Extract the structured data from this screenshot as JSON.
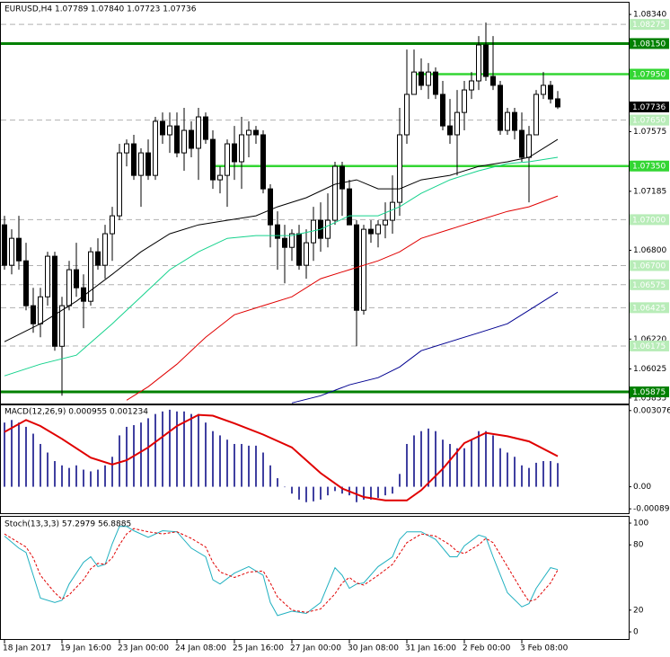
{
  "chart_data": [
    {
      "type": "candlestick",
      "title": "EURUSD,H4 1.07789 1.07840 1.07723 1.07736",
      "categories": [
        "18 Jan 2017",
        null,
        null,
        null,
        null,
        null,
        null,
        null,
        "19 Jan 16:00",
        null,
        null,
        null,
        null,
        null,
        null,
        null,
        "23 Jan 00:00",
        null,
        null,
        null,
        null,
        null,
        null,
        null,
        "24 Jan 08:00",
        null,
        null,
        null,
        null,
        null,
        null,
        null,
        "25 Jan 16:00",
        null,
        null,
        null,
        null,
        null,
        null,
        null,
        "27 Jan 00:00",
        null,
        null,
        null,
        null,
        null,
        null,
        null,
        "30 Jan 08:00",
        null,
        null,
        null,
        null,
        null,
        null,
        null,
        "31 Jan 16:00",
        null,
        null,
        null,
        null,
        null,
        null,
        null,
        "2 Feb 00:00",
        null,
        null,
        null,
        null,
        null,
        null,
        null,
        "3 Feb 08:00",
        null,
        null,
        null,
        null,
        null
      ],
      "open": [
        1.06966,
        1.06702,
        1.06878,
        1.06731,
        1.06438,
        1.0632,
        1.06496,
        1.06761,
        1.06173,
        1.06438,
        1.06673,
        1.06555,
        1.06467,
        1.0679,
        1.06702,
        1.06908,
        1.07025,
        1.07436,
        1.07495,
        1.07289,
        1.07436,
        1.07289,
        1.07642,
        1.07554,
        1.07612,
        1.07436,
        1.07583,
        1.07466,
        1.07671,
        1.07524,
        1.0726,
        1.07289,
        1.07495,
        1.07378,
        1.07554,
        1.07583,
        1.07554,
        1.07201,
        1.06966,
        1.06878,
        1.06819,
        1.06908,
        1.06702,
        1.06849,
        1.06996,
        1.06878,
        1.06996,
        1.07348,
        1.07201,
        1.06966,
        1.06408,
        1.06937,
        1.06908,
        1.06966,
        1.06996,
        1.07113,
        1.07554,
        1.07818,
        1.07964,
        1.07877,
        1.07964,
        1.07818,
        1.07612,
        1.07554,
        1.077,
        1.07847,
        1.07906,
        1.08141,
        1.07935,
        1.07877,
        1.07583,
        1.077,
        1.07583,
        1.07407,
        1.07554,
        1.07818,
        1.07877,
        1.07789
      ],
      "high": [
        1.07025,
        1.06937,
        1.07025,
        1.06849,
        1.06555,
        1.06555,
        1.0679,
        1.0679,
        1.06496,
        1.06731,
        1.06849,
        1.06643,
        1.06819,
        1.06878,
        1.06966,
        1.07084,
        1.07495,
        1.07524,
        1.07554,
        1.07466,
        1.07524,
        1.07671,
        1.077,
        1.077,
        1.077,
        1.0773,
        1.07642,
        1.0773,
        1.077,
        1.07583,
        1.07348,
        1.07524,
        1.07612,
        1.07671,
        1.07642,
        1.07612,
        1.07583,
        1.07231,
        1.07054,
        1.06966,
        1.06937,
        1.06966,
        1.06937,
        1.07084,
        1.07113,
        1.07172,
        1.07378,
        1.07378,
        1.0726,
        1.06996,
        1.06966,
        1.06996,
        1.06996,
        1.07113,
        1.07289,
        1.0773,
        1.08111,
        1.08111,
        1.08053,
        1.08023,
        1.07994,
        1.07906,
        1.07788,
        1.07847,
        1.07906,
        1.07964,
        1.08199,
        1.08287,
        1.08199,
        1.07906,
        1.0773,
        1.0773,
        1.077,
        1.07612,
        1.07847,
        1.07964,
        1.07906,
        1.0784
      ],
      "low": [
        1.06673,
        1.06643,
        1.06673,
        1.06408,
        1.06261,
        1.06232,
        1.06438,
        1.06144,
        1.0585,
        1.06408,
        1.06496,
        1.06291,
        1.06438,
        1.06673,
        1.06614,
        1.06731,
        1.06996,
        1.07348,
        1.0726,
        1.07084,
        1.0726,
        1.0726,
        1.07495,
        1.07436,
        1.07407,
        1.07319,
        1.07407,
        1.0726,
        1.07495,
        1.07201,
        1.07172,
        1.07084,
        1.0726,
        1.07201,
        1.07407,
        1.07495,
        1.07172,
        1.06819,
        1.06673,
        1.06584,
        1.06731,
        1.06673,
        1.06614,
        1.06731,
        1.0679,
        1.06819,
        1.06966,
        1.07025,
        1.06966,
        1.06173,
        1.06379,
        1.06849,
        1.06819,
        1.06878,
        1.06908,
        1.07025,
        1.07495,
        1.07818,
        1.07847,
        1.07788,
        1.07788,
        1.07583,
        1.07495,
        1.07289,
        1.07583,
        1.07788,
        1.07847,
        1.07906,
        1.07847,
        1.07554,
        1.07554,
        1.07524,
        1.07378,
        1.07113,
        1.07554,
        1.07788,
        1.07759,
        1.07723
      ],
      "close": [
        1.06702,
        1.06878,
        1.06731,
        1.06438,
        1.0632,
        1.06496,
        1.06761,
        1.06173,
        1.06438,
        1.06673,
        1.06555,
        1.06467,
        1.0679,
        1.06702,
        1.06908,
        1.07025,
        1.07436,
        1.07495,
        1.07289,
        1.07436,
        1.07289,
        1.07642,
        1.07554,
        1.07612,
        1.07436,
        1.07583,
        1.07466,
        1.07671,
        1.07524,
        1.0726,
        1.07289,
        1.07495,
        1.07378,
        1.07554,
        1.07583,
        1.07554,
        1.07201,
        1.06966,
        1.06878,
        1.06819,
        1.06908,
        1.06702,
        1.06849,
        1.06996,
        1.06878,
        1.06996,
        1.07348,
        1.07201,
        1.06966,
        1.06408,
        1.06937,
        1.06908,
        1.06966,
        1.06996,
        1.07113,
        1.07554,
        1.07818,
        1.07964,
        1.07877,
        1.07964,
        1.07818,
        1.07612,
        1.07554,
        1.077,
        1.07847,
        1.07906,
        1.08141,
        1.07935,
        1.07877,
        1.07583,
        1.077,
        1.07583,
        1.07407,
        1.07554,
        1.07818,
        1.07877,
        1.07788,
        1.07736
      ],
      "up_color": "#ffffff",
      "down_color": "#000000",
      "lines": [
        {
          "color": "#000000",
          "x": [
            0,
            5,
            10,
            15,
            19,
            23,
            27,
            31,
            35,
            38,
            42,
            46,
            49,
            52,
            55,
            58,
            62,
            66,
            70,
            73,
            77
          ],
          "values": [
            1.06203,
            1.0632,
            1.06467,
            1.06643,
            1.0679,
            1.06908,
            1.06966,
            1.06996,
            1.07025,
            1.07084,
            1.07143,
            1.07231,
            1.0726,
            1.07201,
            1.07201,
            1.0726,
            1.07289,
            1.07348,
            1.07378,
            1.07407,
            1.07524
          ]
        },
        {
          "color": "#14d28c",
          "x": [
            0,
            5,
            10,
            15,
            19,
            23,
            27,
            31,
            35,
            40,
            44,
            48,
            52,
            55,
            58,
            62,
            66,
            70,
            73,
            77
          ],
          "values": [
            1.0598,
            1.06056,
            1.06115,
            1.0632,
            1.06496,
            1.06673,
            1.0679,
            1.06878,
            1.06896,
            1.06896,
            1.06937,
            1.07025,
            1.07025,
            1.07084,
            1.07172,
            1.0726,
            1.07319,
            1.07366,
            1.07378,
            1.07407
          ]
        },
        {
          "color": "#e00000",
          "x": [
            17,
            20,
            24,
            28,
            32,
            36,
            40,
            44,
            48,
            52,
            55,
            58,
            62,
            66,
            70,
            73,
            77
          ],
          "values": [
            1.05821,
            1.05909,
            1.06056,
            1.06232,
            1.06379,
            1.06438,
            1.06496,
            1.06614,
            1.06673,
            1.06731,
            1.0679,
            1.06878,
            1.06937,
            1.06996,
            1.07054,
            1.07084,
            1.07154
          ]
        },
        {
          "color": "#000090",
          "x": [
            40,
            44,
            48,
            52,
            55,
            58,
            62,
            66,
            70,
            73,
            77
          ],
          "values": [
            1.05803,
            1.0585,
            1.05921,
            1.05968,
            1.06038,
            1.06144,
            1.06203,
            1.06261,
            1.0632,
            1.06408,
            1.06526
          ]
        }
      ],
      "levels": [
        {
          "value": 1.08275,
          "label": "1.08275",
          "style": "dashed",
          "color": "#b0b0b0",
          "label_color": "#b8ecb8"
        },
        {
          "value": 1.0815,
          "label": "1.08150",
          "style": "solid",
          "color": "#008000",
          "label_color": "#008000"
        },
        {
          "value": 1.0795,
          "label": "1.07950",
          "style": "solid",
          "color": "#33d633",
          "label_color": "#33d633",
          "x_start": 57
        },
        {
          "value": 1.0765,
          "label": "1.07650",
          "style": "dashed",
          "color": "#b0b0b0",
          "label_color": "#b8ecb8"
        },
        {
          "value": 1.0735,
          "label": "1.07350",
          "style": "solid",
          "color": "#33d633",
          "label_color": "#33d633",
          "x_start": 29
        },
        {
          "value": 1.07,
          "label": "1.07000",
          "style": "dashed",
          "color": "#b0b0b0",
          "label_color": "#b8ecb8"
        },
        {
          "value": 1.067,
          "label": "1.06700",
          "style": "dashed",
          "color": "#b0b0b0",
          "label_color": "#b8ecb8"
        },
        {
          "value": 1.06575,
          "label": "1.06575",
          "style": "dashed",
          "color": "#b0b0b0",
          "label_color": "#b8ecb8"
        },
        {
          "value": 1.06425,
          "label": "1.06425",
          "style": "dashed",
          "color": "#b0b0b0",
          "label_color": "#b8ecb8"
        },
        {
          "value": 1.06175,
          "label": "1.06175",
          "style": "dashed",
          "color": "#b0b0b0",
          "label_color": "#b8ecb8"
        },
        {
          "value": 1.05875,
          "label": "1.05875",
          "style": "solid",
          "color": "#008000",
          "label_color": "#008000"
        }
      ],
      "last_price": {
        "value": 1.07736,
        "label": "1.07736"
      },
      "ylim": [
        1.05799,
        1.08405
      ],
      "yticks": [
        {
          "value": 1.0834,
          "label": "1.08340"
        },
        1.07575,
        1.07185,
        {
          "value": 1.068,
          "label": "1.06800"
        },
        {
          "value": 1.0622,
          "label": "1.06220"
        },
        1.06025,
        1.05835
      ]
    },
    {
      "type": "macd",
      "title": "MACD(12,26,9) 0.000955 0.001234",
      "color": "#000080",
      "values": [
        0.002592,
        0.002696,
        0.002592,
        0.002419,
        0.002143,
        0.001728,
        0.001382,
        0.001037,
        0.000864,
        0.00076,
        0.000864,
        0.000691,
        0.000622,
        0.000691,
        0.000864,
        0.00121,
        0.002074,
        0.002419,
        0.002488,
        0.002592,
        0.002765,
        0.002938,
        0.003041,
        0.00311,
        0.003041,
        0.003041,
        0.002938,
        0.002938,
        0.002592,
        0.002246,
        0.002074,
        0.001901,
        0.001728,
        0.001728,
        0.001659,
        0.001659,
        0.001382,
        0.000864,
        0.000346,
        0,
        -0.000276,
        -0.000518,
        -0.000622,
        -0.000588,
        -0.000518,
        -0.000346,
        -0.000173,
        -0.000276,
        -0.000346,
        -0.000622,
        -0.000518,
        -0.000518,
        -0.000449,
        -0.000346,
        -0.000276,
        0.000518,
        0.001728,
        0.002074,
        0.002246,
        0.00235,
        0.002246,
        0.001901,
        0.001728,
        0.001555,
        0.001555,
        0.001901,
        0.002246,
        0.002246,
        0.002074,
        0.001555,
        0.001382,
        0.00121,
        0.000864,
        0.00076,
        0.000968,
        0.001037,
        0.001037,
        0.000955
      ],
      "signal": {
        "color": "#e00000",
        "x": [
          0,
          3,
          5,
          8,
          12,
          15,
          17,
          20,
          24,
          27,
          29,
          32,
          36,
          40,
          44,
          47,
          50,
          53,
          56,
          58,
          61,
          64,
          67,
          70,
          73,
          77
        ],
        "values": [
          0.002212,
          0.002696,
          0.002454,
          0.001935,
          0.001175,
          0.000899,
          0.001071,
          0.00159,
          0.002454,
          0.002903,
          0.002868,
          0.002557,
          0.002108,
          0.00159,
          0.000553,
          -6.9e-05,
          -0.000415,
          -0.000553,
          -0.000553,
          -0.000138,
          0.000726,
          0.001763,
          0.002177,
          0.002039,
          0.001832,
          0.001234
        ]
      },
      "ylim": [
        -0.001067,
        0.003287
      ],
      "yticks": [
        0.003076,
        {
          "value": 0,
          "label": "0.00"
        },
        -0.000891
      ]
    },
    {
      "type": "stochastic",
      "title": "Stoch(13,3,3) 57.2979 56.8885",
      "x": [
        0,
        2,
        3,
        4,
        5,
        7,
        8,
        9,
        11,
        12,
        13,
        14,
        15,
        16,
        17,
        18,
        20,
        22,
        24,
        26,
        28,
        29,
        30,
        32,
        34,
        36,
        37,
        38,
        40,
        42,
        44,
        46,
        47,
        48,
        49,
        50,
        52,
        54,
        55,
        56,
        58,
        60,
        62,
        63,
        64,
        66,
        67,
        68,
        70,
        72,
        73,
        74,
        76,
        77
      ],
      "series": [
        {
          "color": "#20b0c0",
          "dashed": false,
          "values": [
            88,
            77,
            73,
            52,
            31,
            27,
            29,
            44,
            64,
            69,
            60,
            62,
            81,
            97,
            97,
            93,
            87,
            93,
            92,
            77,
            69,
            48,
            44,
            54,
            60,
            52,
            27,
            15,
            19,
            17,
            27,
            59,
            52,
            40,
            44,
            45,
            60,
            69,
            85,
            92,
            92,
            85,
            69,
            69,
            79,
            89,
            87,
            69,
            36,
            23,
            26,
            40,
            59,
            57.2979
          ]
        },
        {
          "color": "#e00000",
          "dashed": true,
          "values": [
            90,
            82,
            78,
            68,
            52,
            36,
            30,
            34,
            48,
            58,
            63,
            62,
            68,
            80,
            90,
            95,
            92,
            90,
            92,
            86,
            78,
            64,
            55,
            50,
            55,
            56,
            45,
            32,
            20,
            18,
            21,
            35,
            45,
            50,
            45,
            43,
            52,
            62,
            72,
            82,
            90,
            88,
            80,
            74,
            72,
            80,
            86,
            82,
            60,
            38,
            28,
            30,
            45,
            56.8885
          ]
        }
      ],
      "ylim": [
        -7.4,
        105.8
      ],
      "yticks": [
        100,
        80,
        20,
        0
      ]
    }
  ]
}
